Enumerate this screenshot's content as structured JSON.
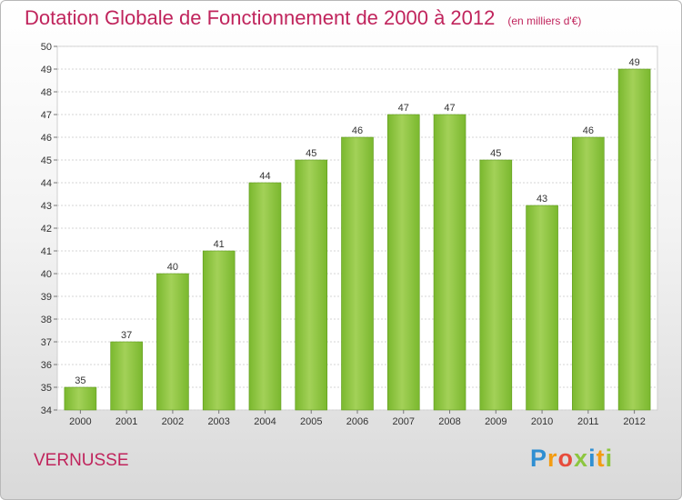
{
  "chart_data": {
    "type": "bar",
    "title": "Dotation Globale de Fonctionnement de 2000 à 2012",
    "subtitle": "(en milliers d'€)",
    "categories": [
      "2000",
      "2001",
      "2002",
      "2003",
      "2004",
      "2005",
      "2006",
      "2007",
      "2008",
      "2009",
      "2010",
      "2011",
      "2012"
    ],
    "values": [
      35,
      37,
      40,
      41,
      44,
      45,
      46,
      47,
      47,
      45,
      43,
      46,
      49
    ],
    "ylim": [
      34,
      50
    ],
    "yticks": [
      34,
      35,
      36,
      37,
      38,
      39,
      40,
      41,
      42,
      43,
      44,
      45,
      46,
      47,
      48,
      49,
      50
    ],
    "grid": true,
    "xlabel": "",
    "ylabel": "",
    "bar_color": "#7ab82e",
    "bar_color_light": "#a3d158"
  },
  "place_name": "VERNUSSE",
  "logo": {
    "text": "Proxiti",
    "letters": [
      "P",
      "r",
      "o",
      "x",
      "i",
      "t",
      "i"
    ],
    "colors": [
      "#2f8fd2",
      "#f39c12",
      "#e74c3c",
      "#8cc63f",
      "#2f8fd2",
      "#f39c12",
      "#8cc63f"
    ]
  }
}
